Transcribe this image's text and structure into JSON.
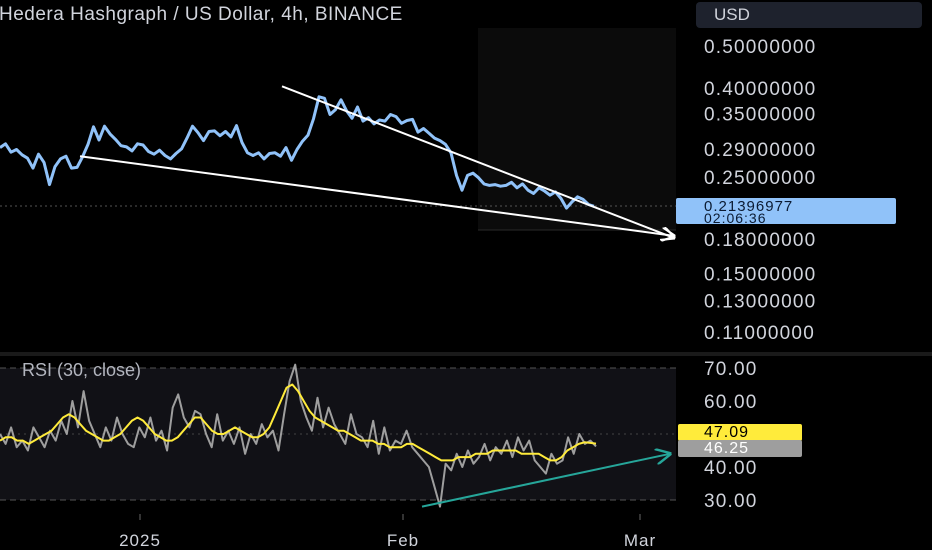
{
  "header": {
    "symbol_title": "Hedera Hashgraph / US Dollar, 4h, BINANCE",
    "currency_button": "USD"
  },
  "price_scale": {
    "labels": [
      "0.50000000",
      "0.40000000",
      "0.35000000",
      "0.29000000",
      "0.25000000",
      "0.18000000",
      "0.15000000",
      "0.13000000",
      "0.11000000"
    ],
    "log_scale": true
  },
  "price_tag": {
    "price": "0.21396977",
    "countdown": "02:06:36"
  },
  "rsi_pane": {
    "title": "RSI (30, close)",
    "scale_labels": [
      "70.00",
      "60.00",
      "40.00",
      "30.00"
    ],
    "band_upper": 70,
    "band_lower": 30,
    "mid_line": 50,
    "current_ma": "47.09",
    "current_value": "46.25"
  },
  "time_axis": {
    "labels": [
      "2025",
      "Feb",
      "Mar"
    ]
  },
  "colors": {
    "price_line": "#90c2f9",
    "rsi_line": "#9e9e9e",
    "rsi_ma": "#ffeb3b",
    "trendlines": "#ffffff",
    "divergence_arrow": "#26a69a",
    "background": "#000000"
  },
  "chart_data": [
    {
      "type": "line",
      "title": "Hedera Hashgraph / US Dollar, 4h, BINANCE",
      "x_axis": {
        "ticks": [
          "2025",
          "Feb",
          "Mar"
        ]
      },
      "y_axis": {
        "scale": "log",
        "range": [
          0.1,
          0.55
        ]
      },
      "series": [
        {
          "values": [
            0.292,
            0.298,
            0.285,
            0.289,
            0.281,
            0.276,
            0.262,
            0.282,
            0.27,
            0.24,
            0.264,
            0.275,
            0.279,
            0.262,
            0.263,
            0.278,
            0.297,
            0.326,
            0.304,
            0.327,
            0.314,
            0.305,
            0.295,
            0.293,
            0.287,
            0.298,
            0.296,
            0.286,
            0.282,
            0.288,
            0.28,
            0.275,
            0.283,
            0.29,
            0.307,
            0.327,
            0.316,
            0.303,
            0.318,
            0.319,
            0.311,
            0.318,
            0.309,
            0.328,
            0.3,
            0.284,
            0.28,
            0.284,
            0.275,
            0.283,
            0.284,
            0.279,
            0.292,
            0.273,
            0.289,
            0.302,
            0.312,
            0.34,
            0.382,
            0.379,
            0.348,
            0.357,
            0.376,
            0.355,
            0.341,
            0.362,
            0.336,
            0.342,
            0.331,
            0.338,
            0.336,
            0.348,
            0.344,
            0.332,
            0.337,
            0.339,
            0.317,
            0.323,
            0.315,
            0.307,
            0.303,
            0.297,
            0.284,
            0.252,
            0.233,
            0.252,
            0.255,
            0.249,
            0.241,
            0.239,
            0.24,
            0.238,
            0.239,
            0.243,
            0.236,
            0.241,
            0.233,
            0.229,
            0.236,
            0.232,
            0.227,
            0.231,
            0.223,
            0.212,
            0.219,
            0.225,
            0.222,
            0.216,
            0.214
          ]
        }
      ],
      "trendlines": [
        {
          "name": "upper",
          "from_price": 0.404,
          "to_price": 0.181
        },
        {
          "name": "lower",
          "from_price": 0.279,
          "to_price": 0.183
        }
      ],
      "last_price": 0.21396977
    },
    {
      "type": "line",
      "title": "RSI (30, close)",
      "y_axis": {
        "range": [
          24,
          72
        ],
        "ticks": [
          70,
          60,
          40,
          30
        ]
      },
      "series": [
        {
          "values": [
            50,
            47,
            52,
            46,
            48,
            45,
            52,
            49,
            46,
            51,
            48,
            54,
            50,
            60,
            52,
            63,
            54,
            50,
            46,
            52,
            48,
            55,
            50,
            47,
            46,
            52,
            49,
            55,
            48,
            51,
            45,
            58,
            62,
            55,
            52,
            57,
            56,
            50,
            46,
            56,
            48,
            51,
            47,
            52,
            44,
            50,
            47,
            53,
            49,
            51,
            45,
            56,
            66,
            71,
            60,
            55,
            51,
            61,
            52,
            58,
            53,
            50,
            47,
            56,
            50,
            49,
            46,
            54,
            44,
            52,
            45,
            48,
            47,
            51,
            46,
            44,
            42,
            40,
            34,
            28,
            41,
            39,
            44,
            40,
            45,
            41,
            43,
            47,
            42,
            46,
            44,
            48,
            43,
            49,
            45,
            48,
            42,
            40,
            38,
            44,
            41,
            42,
            49,
            44,
            50,
            47,
            48,
            46.25
          ]
        },
        {
          "values": [
            48,
            49,
            49,
            48,
            48,
            47,
            48,
            49,
            50,
            51,
            53,
            55,
            56,
            55,
            53,
            51,
            50,
            49,
            48,
            48,
            49,
            50,
            52,
            54,
            55,
            54,
            52,
            50,
            49,
            48,
            48,
            49,
            51,
            53,
            55,
            55,
            53,
            51,
            50,
            50,
            51,
            52,
            51,
            50,
            49,
            49,
            50,
            52,
            56,
            60,
            64,
            65,
            63,
            60,
            57,
            55,
            54,
            53,
            52,
            51,
            51,
            50,
            49,
            48,
            48,
            48,
            47,
            47,
            46,
            46,
            46,
            47,
            47,
            46,
            45,
            44,
            43,
            42,
            42,
            42,
            43,
            43,
            43,
            44,
            44,
            44,
            45,
            45,
            45,
            45,
            45,
            44,
            44,
            44,
            44,
            43,
            42,
            42,
            43,
            45,
            46,
            47,
            47.5,
            47.3,
            47.09
          ]
        }
      ],
      "divergence_arrow": {
        "from_value": 28,
        "to_value": 44
      }
    }
  ]
}
